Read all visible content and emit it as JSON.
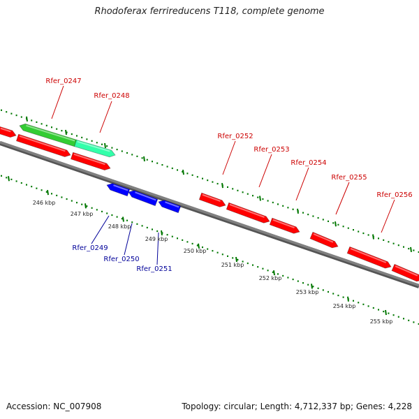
{
  "title": "Rhodoferax ferrireducens T118, complete genome",
  "footer": {
    "accession": "Accession: NC_007908",
    "summary": "Topology: circular; Length: 4,712,337 bp; Genes: 4,228"
  },
  "colors": {
    "backbone": "#808080",
    "forward_gene": "#ff0000",
    "reverse_gene": "#0000ff",
    "rna_gene": "#33cc33",
    "misc_gene": "#33ffaa",
    "tick": "#007700",
    "label_forward": "#cc0000",
    "label_reverse": "#000099"
  },
  "gene_labels": [
    {
      "name": "Rfer_0247",
      "strand": "forward"
    },
    {
      "name": "Rfer_0248",
      "strand": "forward"
    },
    {
      "name": "Rfer_0252",
      "strand": "forward"
    },
    {
      "name": "Rfer_0253",
      "strand": "forward"
    },
    {
      "name": "Rfer_0254",
      "strand": "forward"
    },
    {
      "name": "Rfer_0255",
      "strand": "forward"
    },
    {
      "name": "Rfer_0256",
      "strand": "forward"
    },
    {
      "name": "Rfer_0249",
      "strand": "reverse"
    },
    {
      "name": "Rfer_0250",
      "strand": "reverse"
    },
    {
      "name": "Rfer_0251",
      "strand": "reverse"
    }
  ],
  "ruler_labels": [
    "246 kbp",
    "247 kbp",
    "248 kbp",
    "249 kbp",
    "250 kbp",
    "251 kbp",
    "252 kbp",
    "253 kbp",
    "254 kbp",
    "255 kbp"
  ]
}
